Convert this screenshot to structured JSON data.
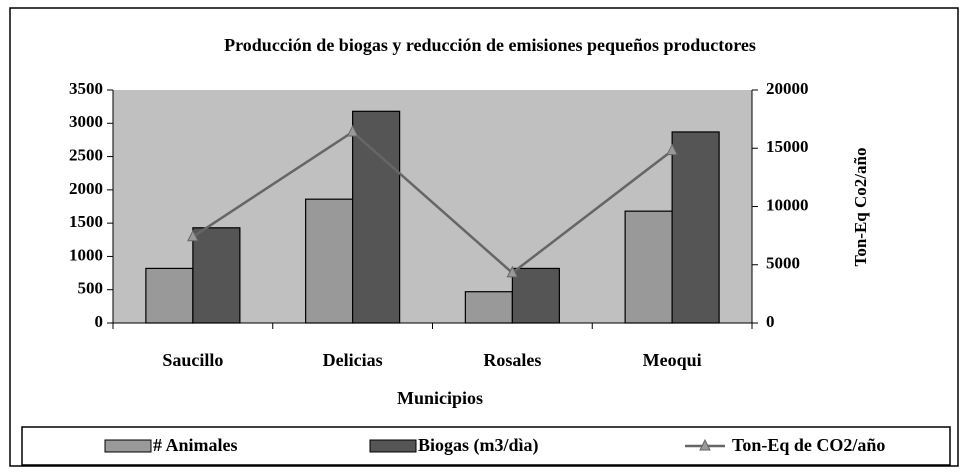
{
  "chart_data": {
    "type": "bar_line",
    "title": "Producción de biogas y reducción de emisiones pequeños productores",
    "x_label": "Municipios",
    "y2_label": "Ton-Eq Co2/año",
    "categories": [
      "Saucillo",
      "Delicias",
      "Rosales",
      "Meoqui"
    ],
    "series": [
      {
        "name": "# Animales",
        "color": "#999999",
        "type": "bar",
        "values": [
          820,
          1860,
          470,
          1680
        ]
      },
      {
        "name": "Biogas (m3/dìa)",
        "color": "#555555",
        "type": "bar",
        "values": [
          1430,
          3180,
          820,
          2870
        ]
      },
      {
        "name": "Ton-Eq de CO2/año",
        "color": "#666666",
        "type": "line",
        "axis": "y2",
        "values": [
          7400,
          16400,
          4300,
          14800
        ]
      }
    ],
    "ylim": [
      0,
      3500
    ],
    "yticks": [
      0,
      500,
      1000,
      1500,
      2000,
      2500,
      3000,
      3500
    ],
    "y2lim": [
      0,
      20000
    ],
    "y2ticks": [
      0,
      5000,
      10000,
      15000,
      20000
    ],
    "plot_background": "#c0c0c0",
    "legend": "bottom"
  }
}
